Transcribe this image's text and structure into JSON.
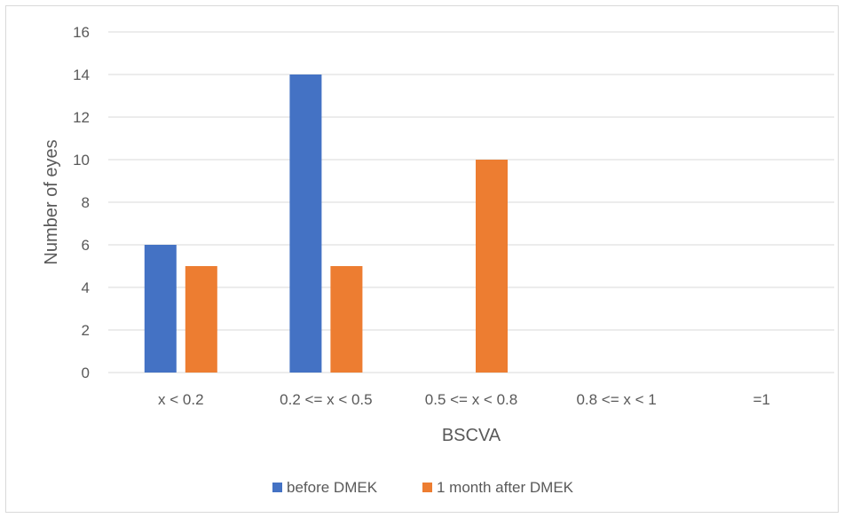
{
  "chart_data": {
    "type": "bar",
    "title": "",
    "xlabel": "BSCVA",
    "ylabel": "Number of eyes",
    "categories": [
      "x < 0.2",
      "0.2 <= x < 0.5",
      "0.5 <= x < 0.8",
      "0.8 <= x < 1",
      "=1"
    ],
    "series": [
      {
        "name": "before DMEK",
        "color": "#4472c4",
        "values": [
          6,
          14,
          0,
          0,
          0
        ]
      },
      {
        "name": "1 month after DMEK",
        "color": "#ed7d31",
        "values": [
          5,
          5,
          10,
          0,
          0
        ]
      }
    ],
    "ylim": [
      0,
      16
    ],
    "yticks": [
      0,
      2,
      4,
      6,
      8,
      10,
      12,
      14,
      16
    ],
    "grid": true,
    "legend_position": "bottom"
  }
}
